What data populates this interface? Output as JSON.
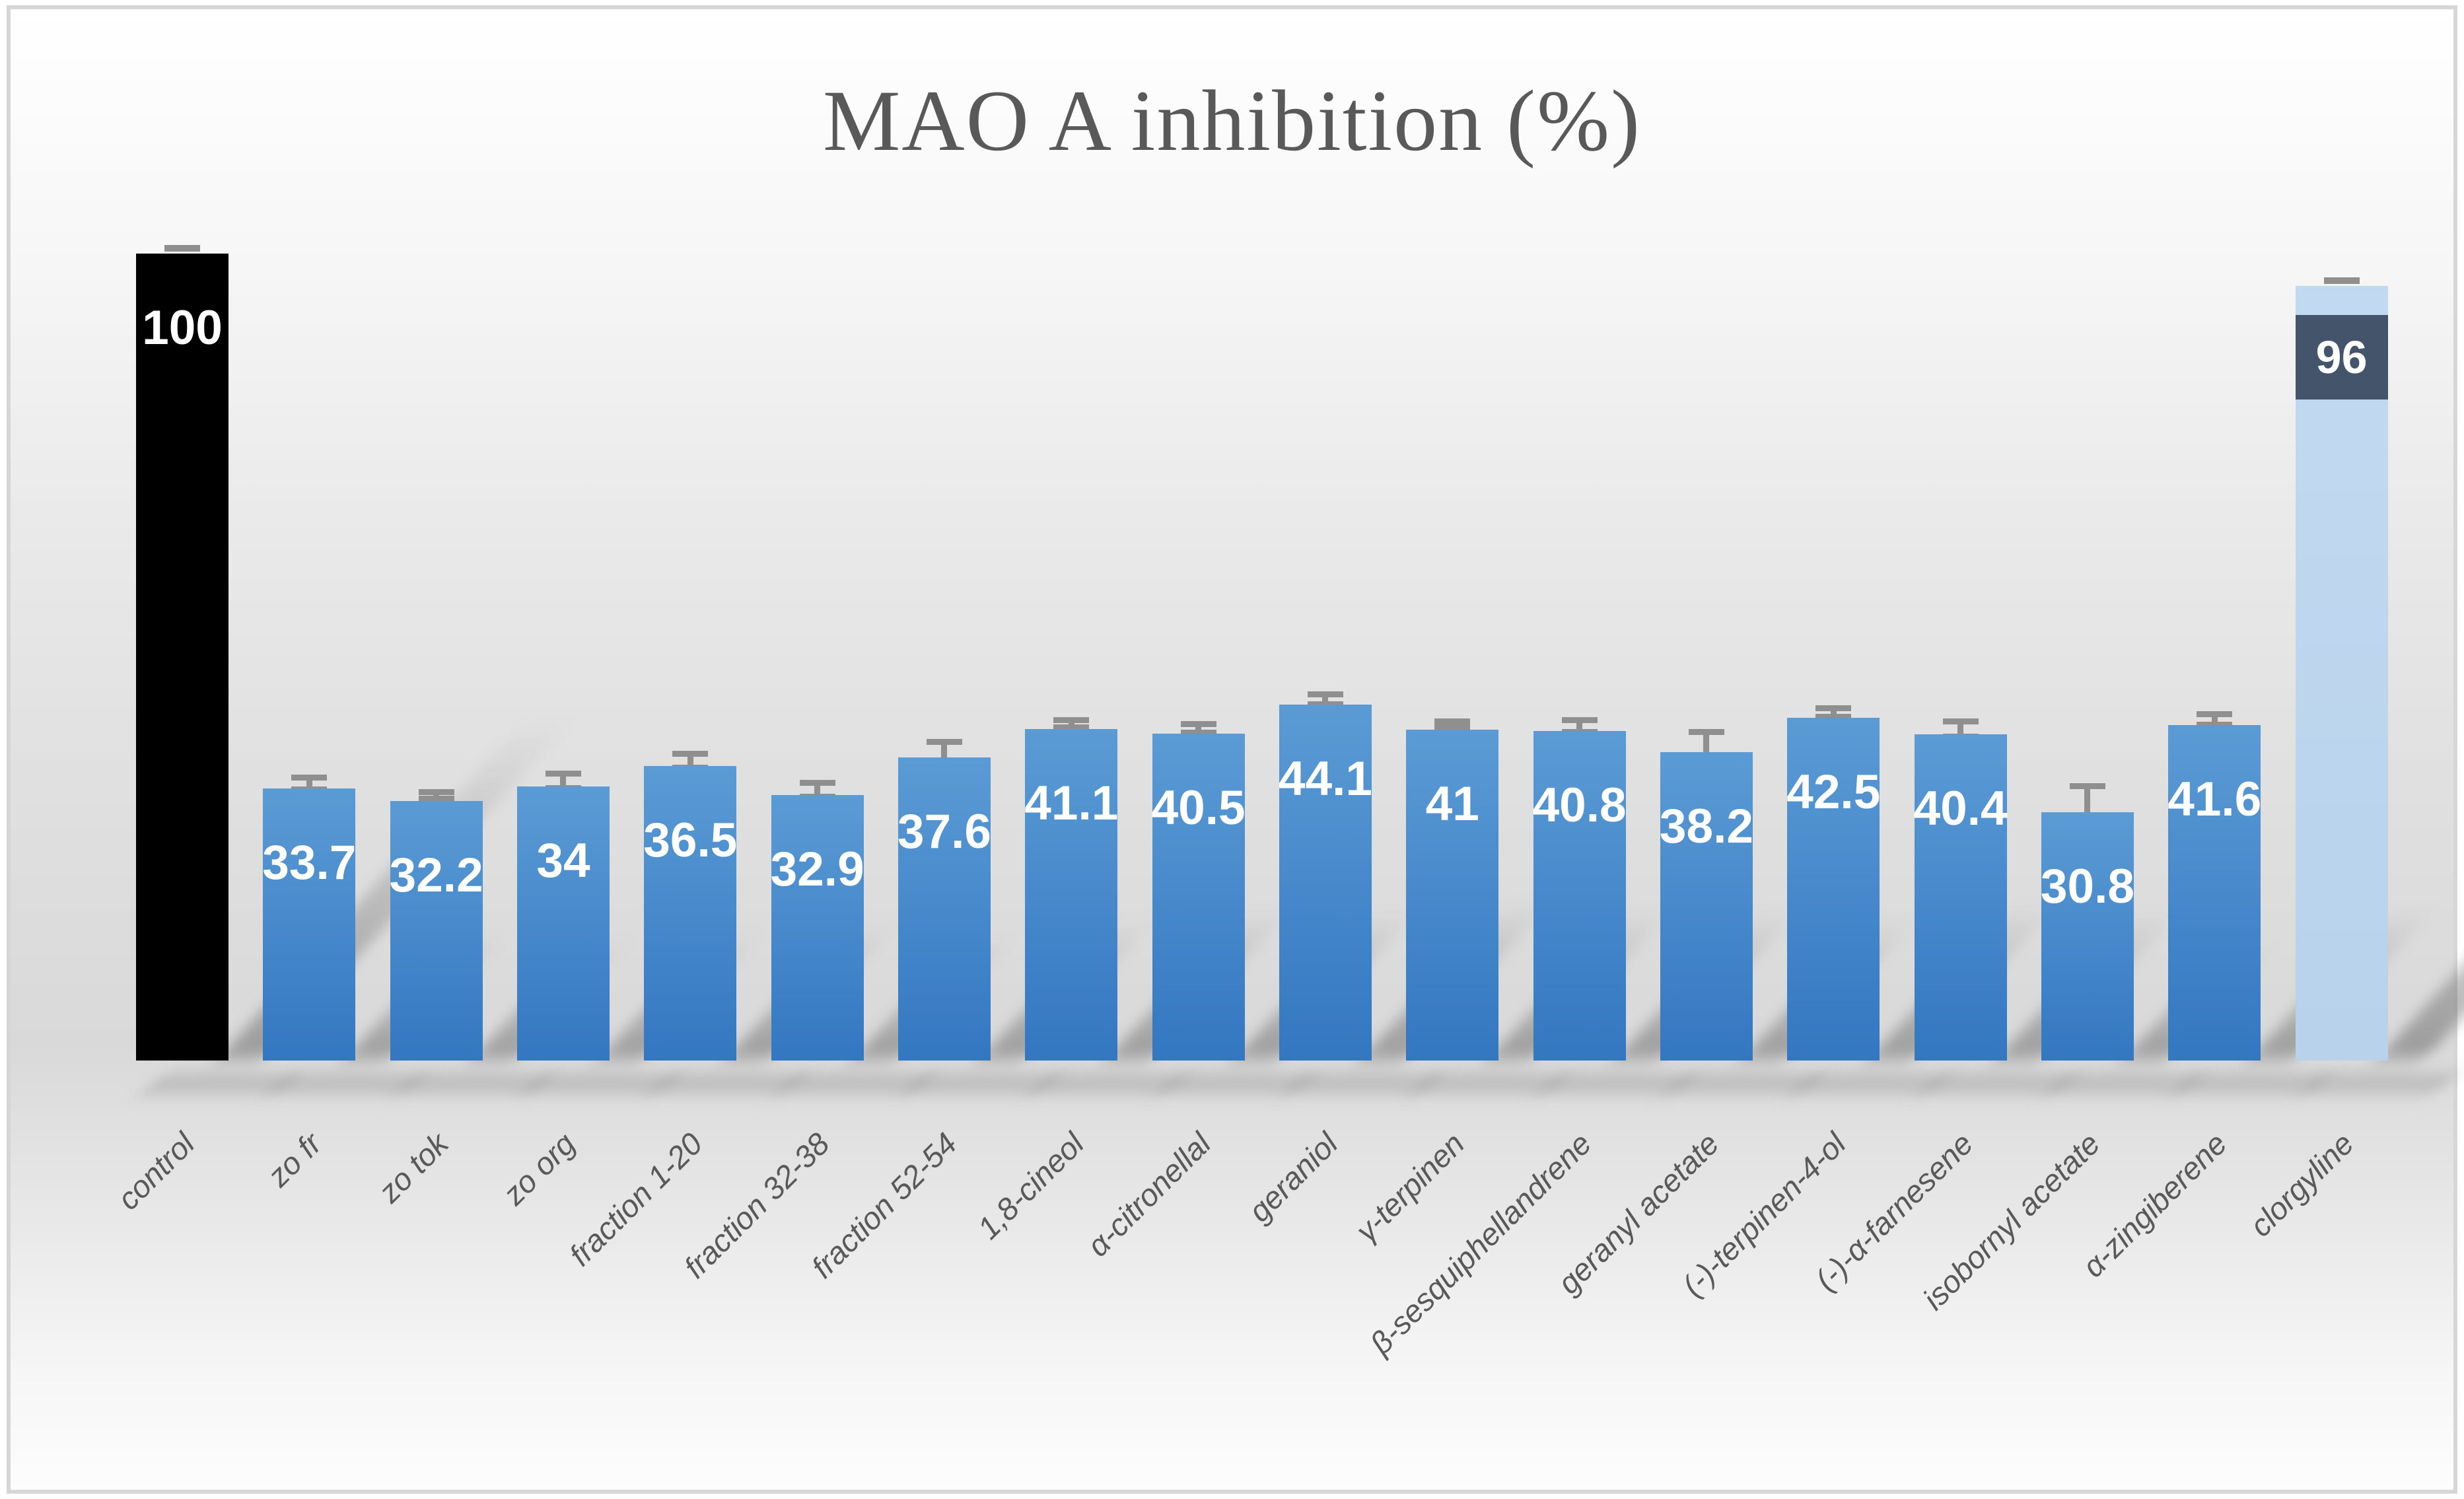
{
  "chart_data": {
    "type": "bar",
    "title": "MAO A inhibition (%)",
    "xlabel": "",
    "ylabel": "",
    "ylim": [
      0,
      100
    ],
    "grid": false,
    "legend": false,
    "categories": [
      "control",
      "zo fr",
      "zo tok",
      "zo org",
      "fraction 1-20",
      "fraction 32-38",
      "fraction 52-54",
      "1,8-cineol",
      "α-citronellal",
      "geraniol",
      "γ-terpinen",
      "β-sesquiphellandrene",
      "geranyl acetate",
      "(-)-terpinen-4-ol",
      "(-)-α-farnesene",
      "isobornyl acetate",
      "α-zingiberene",
      "clorgyline"
    ],
    "values": [
      100,
      33.7,
      32.2,
      34,
      36.5,
      32.9,
      37.6,
      41.1,
      40.5,
      44.1,
      41,
      40.8,
      38.2,
      42.5,
      40.4,
      30.8,
      41.6,
      96
    ],
    "value_labels": [
      "100",
      "33.7",
      "32.2",
      "34",
      "36.5",
      "32.9",
      "37.6",
      "41.1",
      "40.5",
      "44.1",
      "41",
      "40.8",
      "38.2",
      "42.5",
      "40.4",
      "30.8",
      "41.6",
      "96"
    ],
    "errors": [
      0.3,
      1.1,
      0.8,
      1.3,
      1.2,
      1.2,
      1.6,
      0.8,
      0.9,
      1.0,
      0.7,
      1.1,
      2.2,
      0.9,
      1.3,
      2.9,
      1.0,
      0.4
    ],
    "styles": [
      "control",
      "default",
      "default",
      "default",
      "default",
      "default",
      "default",
      "default",
      "default",
      "default",
      "default",
      "default",
      "default",
      "default",
      "default",
      "default",
      "default",
      "reference"
    ],
    "colors": {
      "bar_top": "#5b9bd5",
      "bar_bottom": "#3377c1",
      "control_bar": "#000000",
      "reference_bar_top": "#c2daf1",
      "reference_bar_bottom": "#b8d2ec",
      "reference_label_bg": "#44546a",
      "error_bar": "#8f8f8f",
      "title_text": "#595959",
      "axis_text": "#595959",
      "value_text": "#ffffff",
      "frame_border": "#d6d6d6"
    }
  }
}
